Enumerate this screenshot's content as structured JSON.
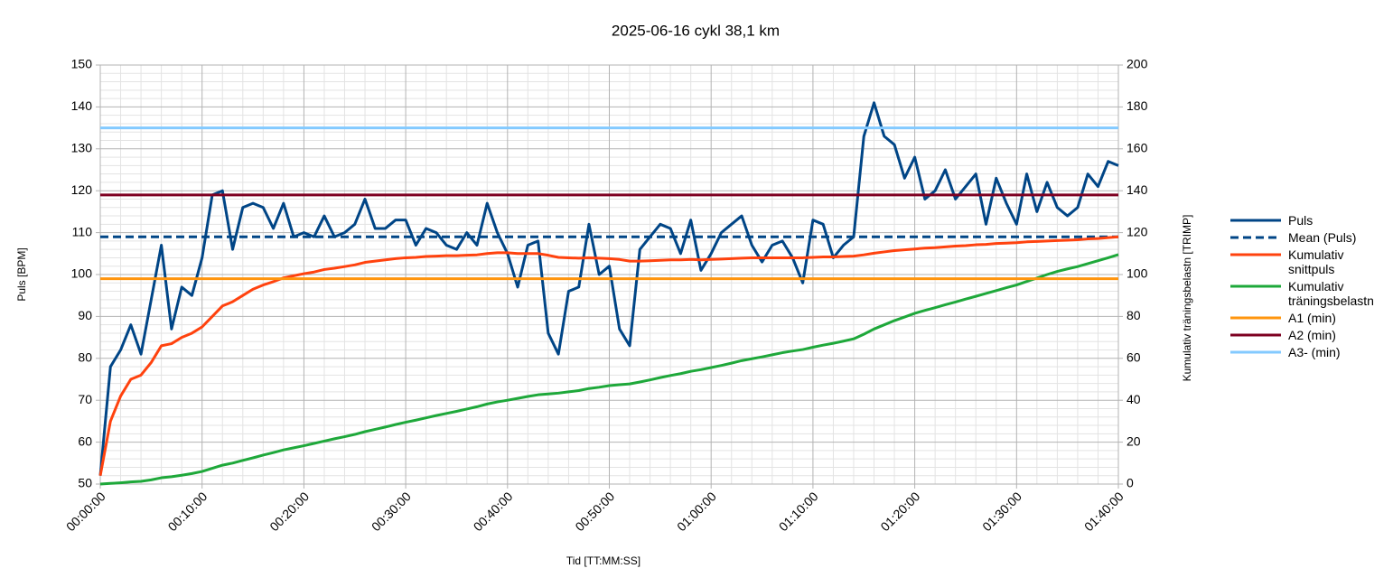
{
  "chart_data": {
    "type": "line",
    "title": "2025-06-16 cykl 38,1 km",
    "x_label": "Tid [TT:MM:SS]",
    "y_label": "Puls [BPM]",
    "y2_label": "Kumulativ träningsbelastn [TRIMP]",
    "x": [
      0,
      1,
      2,
      3,
      4,
      5,
      6,
      7,
      8,
      9,
      10,
      11,
      12,
      13,
      14,
      15,
      16,
      17,
      18,
      19,
      20,
      21,
      22,
      23,
      24,
      25,
      26,
      27,
      28,
      29,
      30,
      31,
      32,
      33,
      34,
      35,
      36,
      37,
      38,
      39,
      40,
      41,
      42,
      43,
      44,
      45,
      46,
      47,
      48,
      49,
      50,
      51,
      52,
      53,
      54,
      55,
      56,
      57,
      58,
      59,
      60,
      61,
      62,
      63,
      64,
      65,
      66,
      67,
      68,
      69,
      70,
      71,
      72,
      73,
      74,
      75,
      76,
      77,
      78,
      79,
      80,
      81,
      82,
      83,
      84,
      85,
      86,
      87,
      88,
      89,
      90,
      91,
      92,
      93,
      94,
      95,
      96,
      97,
      98,
      99,
      100
    ],
    "xlim": [
      0,
      100
    ],
    "xticks": [
      {
        "value": 0,
        "label": "00:00:00"
      },
      {
        "value": 10,
        "label": "00:10:00"
      },
      {
        "value": 20,
        "label": "00:20:00"
      },
      {
        "value": 30,
        "label": "00:30:00"
      },
      {
        "value": 40,
        "label": "00:40:00"
      },
      {
        "value": 50,
        "label": "00:50:00"
      },
      {
        "value": 60,
        "label": "01:00:00"
      },
      {
        "value": 70,
        "label": "01:10:00"
      },
      {
        "value": 80,
        "label": "01:20:00"
      },
      {
        "value": 90,
        "label": "01:30:00"
      },
      {
        "value": 100,
        "label": "01:40:00"
      }
    ],
    "ylim": [
      50,
      150
    ],
    "yticks": [
      50,
      60,
      70,
      80,
      90,
      100,
      110,
      120,
      130,
      140,
      150
    ],
    "y2lim": [
      0,
      200
    ],
    "y2ticks": [
      0,
      20,
      40,
      60,
      80,
      100,
      120,
      140,
      160,
      180,
      200
    ],
    "grid": true,
    "legend": "right",
    "series": [
      {
        "name": "Puls",
        "color": "#004586",
        "values": [
          52,
          78,
          82,
          88,
          81,
          94,
          107,
          87,
          97,
          95,
          104,
          119,
          120,
          106,
          116,
          117,
          116,
          111,
          117,
          109,
          110,
          109,
          114,
          109,
          110,
          112,
          118,
          111,
          111,
          113,
          113,
          107,
          111,
          110,
          107,
          106,
          110,
          107,
          117,
          110,
          105,
          97,
          107,
          108,
          86,
          81,
          96,
          97,
          112,
          100,
          102,
          87,
          83,
          106,
          109,
          112,
          111,
          105,
          113,
          101,
          105,
          110,
          112,
          114,
          107,
          103,
          107,
          108,
          104,
          98,
          113,
          112,
          104,
          107,
          109,
          133,
          141,
          133,
          131,
          123,
          128,
          118,
          120,
          125,
          118,
          121,
          124,
          112,
          123,
          117,
          112,
          124,
          115,
          122,
          116,
          114,
          116,
          124,
          121,
          127,
          126
        ]
      },
      {
        "name": "Mean (Puls)",
        "color": "#004586",
        "dashed": true,
        "value": 109
      },
      {
        "name": "Kumulativ snittpuls",
        "color": "#ff420e",
        "values": [
          52,
          65,
          71,
          75,
          76,
          79,
          83,
          83.5,
          85,
          86,
          87.5,
          90,
          92.5,
          93.5,
          95,
          96.5,
          97.5,
          98.3,
          99.2,
          99.7,
          100.2,
          100.6,
          101.2,
          101.5,
          101.9,
          102.3,
          102.9,
          103.2,
          103.5,
          103.8,
          104,
          104.1,
          104.3,
          104.4,
          104.5,
          104.5,
          104.6,
          104.7,
          105,
          105.2,
          105.2,
          105,
          105,
          105,
          104.6,
          104.1,
          104,
          103.9,
          104,
          103.9,
          103.8,
          103.6,
          103.2,
          103.2,
          103.3,
          103.4,
          103.5,
          103.5,
          103.6,
          103.5,
          103.6,
          103.7,
          103.8,
          103.9,
          104,
          104,
          104,
          104,
          104,
          104,
          104.1,
          104.2,
          104.2,
          104.3,
          104.4,
          104.7,
          105.1,
          105.4,
          105.7,
          105.9,
          106.1,
          106.3,
          106.4,
          106.6,
          106.8,
          106.9,
          107.1,
          107.2,
          107.4,
          107.5,
          107.6,
          107.8,
          107.9,
          108,
          108.1,
          108.2,
          108.3,
          108.5,
          108.6,
          108.8,
          109
        ]
      },
      {
        "name": "Kumulativ träningsbelastn",
        "color": "#1ea83a",
        "axis": "y2",
        "values": [
          0,
          0.3,
          0.6,
          1,
          1.3,
          2,
          3,
          3.5,
          4.2,
          5,
          6,
          7.5,
          9,
          10,
          11.3,
          12.5,
          13.8,
          15,
          16.3,
          17.3,
          18.3,
          19.4,
          20.5,
          21.6,
          22.6,
          23.7,
          25,
          26.1,
          27.2,
          28.4,
          29.5,
          30.5,
          31.6,
          32.7,
          33.7,
          34.7,
          35.8,
          36.9,
          38.2,
          39.2,
          40,
          40.9,
          41.8,
          42.6,
          43,
          43.4,
          44,
          44.6,
          45.6,
          46.2,
          47,
          47.4,
          47.8,
          48.7,
          49.7,
          50.8,
          51.8,
          52.7,
          53.8,
          54.6,
          55.6,
          56.6,
          57.7,
          58.9,
          59.8,
          60.7,
          61.7,
          62.7,
          63.5,
          64.2,
          65.3,
          66.3,
          67.2,
          68.2,
          69.3,
          71.5,
          74,
          76,
          78,
          79.7,
          81.5,
          82.9,
          84.2,
          85.6,
          86.9,
          88.3,
          89.6,
          91,
          92.3,
          93.7,
          95,
          96.7,
          98.3,
          100,
          101.5,
          102.7,
          103.8,
          105.2,
          106.6,
          108,
          109.5
        ]
      },
      {
        "name": "A1 (min)",
        "color": "#ff950e",
        "value": 99
      },
      {
        "name": "A2 (min)",
        "color": "#7e0021",
        "value": 119
      },
      {
        "name": "A3- (min)",
        "color": "#83caff",
        "value": 135
      }
    ]
  }
}
